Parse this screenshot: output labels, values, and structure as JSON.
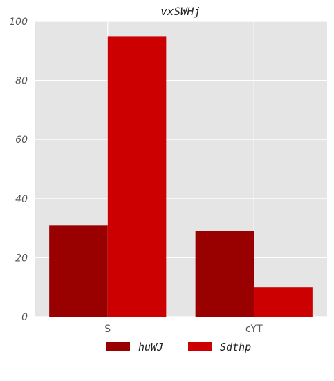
{
  "chart_data": {
    "type": "bar",
    "title": "vxSWHj",
    "categories": [
      "S",
      "cYT"
    ],
    "series": [
      {
        "name": "huWJ",
        "values": [
          31,
          29
        ],
        "color": "#990000"
      },
      {
        "name": "Sdthp",
        "values": [
          95,
          10
        ],
        "color": "#cc0000"
      }
    ],
    "xlabel": "",
    "ylabel": "",
    "ylim": [
      0,
      100
    ],
    "yticks": [
      "0",
      "20",
      "40",
      "60",
      "80",
      "100"
    ],
    "grid": true,
    "legend_position": "bottom",
    "background_color": "#e5e5e5",
    "grid_color": "#ffffff"
  }
}
